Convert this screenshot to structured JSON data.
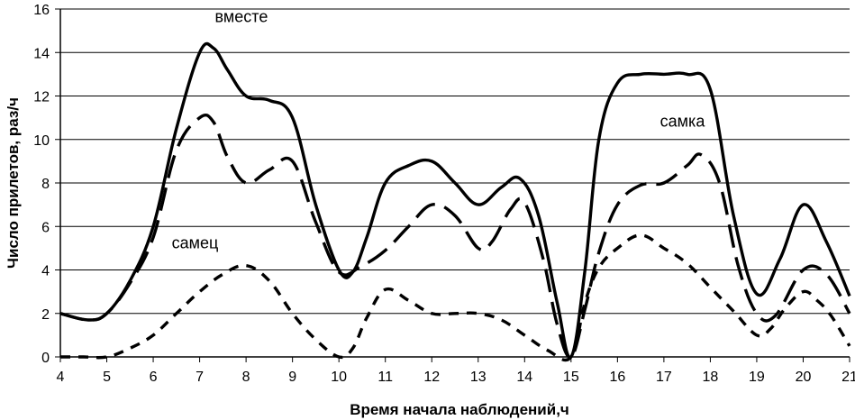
{
  "chart_data": {
    "type": "line",
    "title": "",
    "xlabel": "Время начала наблюдений,ч",
    "ylabel": "Число прилетов, раз/ч",
    "xlim": [
      4,
      21
    ],
    "ylim": [
      0,
      16
    ],
    "x_ticks": [
      4,
      5,
      6,
      7,
      8,
      9,
      10,
      11,
      12,
      13,
      14,
      15,
      16,
      17,
      18,
      19,
      20,
      21
    ],
    "y_ticks": [
      0,
      2,
      4,
      6,
      8,
      10,
      12,
      14,
      16
    ],
    "grid": "horizontal",
    "legend": "none",
    "series": [
      {
        "name": "вместе",
        "style": "solid",
        "color": "#000000",
        "x": [
          4,
          4.6,
          5,
          5.5,
          6,
          6.5,
          7,
          7.3,
          7.6,
          8,
          8.5,
          9,
          9.5,
          10,
          10.3,
          10.6,
          11,
          11.5,
          12,
          12.5,
          13,
          13.5,
          13.9,
          14.3,
          14.7,
          15,
          15.3,
          15.6,
          16,
          16.5,
          17,
          17.5,
          18,
          18.5,
          19,
          19.5,
          20,
          20.5,
          21
        ],
        "values": [
          2,
          1.7,
          2,
          3.5,
          6,
          10.5,
          14,
          14.2,
          13.2,
          12,
          11.8,
          11,
          7,
          4,
          3.9,
          5.5,
          8,
          8.8,
          9,
          8,
          7,
          7.8,
          8.2,
          6.5,
          2.5,
          0,
          4,
          10,
          12.6,
          13,
          13,
          13,
          12.3,
          6.5,
          2.9,
          4.5,
          7,
          5.3,
          2.8
        ]
      },
      {
        "name": "самка",
        "style": "long-dash",
        "color": "#000000",
        "x": [
          4,
          4.6,
          5,
          5.5,
          6,
          6.5,
          7,
          7.3,
          7.6,
          8,
          8.5,
          9,
          9.5,
          10,
          10.5,
          11,
          11.5,
          12,
          12.5,
          13,
          13.3,
          13.7,
          14,
          14.4,
          14.7,
          15,
          15.3,
          15.6,
          16,
          16.5,
          17,
          17.5,
          17.8,
          18.2,
          18.6,
          19,
          19.4,
          20,
          20.5,
          21
        ],
        "values": [
          2,
          1.7,
          2,
          3.4,
          5.5,
          9.5,
          11,
          10.8,
          9.2,
          8,
          8.6,
          9,
          6.2,
          3.9,
          4.2,
          4.9,
          6,
          7,
          6.5,
          5,
          5.3,
          6.8,
          7.1,
          4.5,
          1.5,
          0,
          2.2,
          4.8,
          7,
          7.9,
          8,
          8.8,
          9.3,
          8,
          4.2,
          2,
          1.9,
          4,
          3.8,
          2
        ]
      },
      {
        "name": "самец",
        "style": "short-dash",
        "color": "#000000",
        "x": [
          4,
          4.5,
          5,
          5.5,
          6,
          6.5,
          7,
          7.5,
          8,
          8.5,
          9,
          9.5,
          10,
          10.3,
          10.6,
          11,
          11.5,
          12,
          12.5,
          13,
          13.5,
          14,
          14.5,
          15,
          15.3,
          15.6,
          16,
          16.5,
          17,
          17.5,
          18,
          18.5,
          19,
          19.3,
          19.6,
          20,
          20.3,
          20.6,
          21
        ],
        "values": [
          0,
          0,
          0,
          0.4,
          1,
          2,
          3,
          3.8,
          4.2,
          3.5,
          2,
          0.8,
          0,
          0.4,
          1.8,
          3.1,
          2.6,
          2,
          2,
          2,
          1.7,
          1,
          0.3,
          0,
          2.5,
          4.1,
          5,
          5.6,
          5,
          4.3,
          3.2,
          2.1,
          1,
          1.3,
          2.2,
          3,
          2.6,
          1.9,
          0.5
        ]
      }
    ],
    "annotations": [
      {
        "text": "вместе",
        "x": 7.9,
        "y": 15.4
      },
      {
        "text": "самка",
        "x": 17.4,
        "y": 10.6
      },
      {
        "text": "самец",
        "x": 6.9,
        "y": 5.0
      }
    ]
  }
}
